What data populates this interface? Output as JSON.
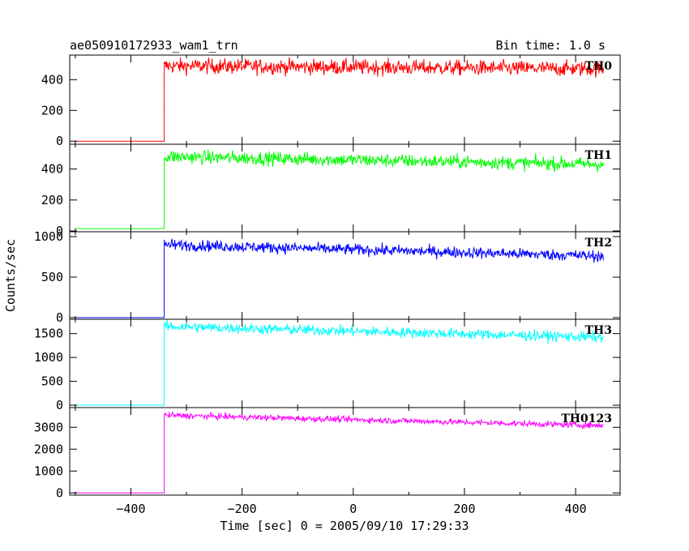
{
  "chart_data": {
    "type": "line",
    "title": "ae050910172933_wam1_trn",
    "subtitle": "Bin time: 1.0 s",
    "xlabel": "Time [sec] 0 = 2005/09/10 17:29:33",
    "ylabel": "Counts/sec",
    "xlim": [
      -510,
      480
    ],
    "x_ticks": [
      -400,
      -200,
      0,
      200,
      400
    ],
    "x_tick_labels": [
      "−400",
      "−200",
      "0",
      "200",
      "400"
    ],
    "trigger_time": -340,
    "x_range": [
      -500,
      450
    ],
    "series": [
      {
        "name": "TH0",
        "color": "#ff0000",
        "ylim": [
          -20,
          560
        ],
        "y_ticks": [
          0,
          200,
          400
        ],
        "y_tick_labels": [
          "0",
          "200",
          "400"
        ],
        "pre": 0,
        "start": 490,
        "end": 470,
        "noise": 25
      },
      {
        "name": "TH1",
        "color": "#00ff00",
        "ylim": [
          -5,
          560
        ],
        "y_ticks": [
          0,
          200,
          400
        ],
        "y_tick_labels": [
          "0",
          "200",
          "400"
        ],
        "pre": 15,
        "start": 480,
        "end": 430,
        "noise": 22
      },
      {
        "name": "TH2",
        "color": "#0000ff",
        "ylim": [
          -20,
          1060
        ],
        "y_ticks": [
          0,
          500,
          1000
        ],
        "y_tick_labels": [
          "0",
          "500",
          "1000"
        ],
        "pre": 0,
        "start": 900,
        "end": 760,
        "noise": 35
      },
      {
        "name": "TH3",
        "color": "#00ffff",
        "ylim": [
          -50,
          1800
        ],
        "y_ticks": [
          0,
          500,
          1000,
          1500
        ],
        "y_tick_labels": [
          "0",
          "500",
          "1000",
          "1500"
        ],
        "pre": 0,
        "start": 1650,
        "end": 1420,
        "noise": 55
      },
      {
        "name": "TH0123",
        "color": "#ff00ff",
        "ylim": [
          -100,
          3900
        ],
        "y_ticks": [
          0,
          1000,
          2000,
          3000
        ],
        "y_tick_labels": [
          "0",
          "1000",
          "2000",
          "3000"
        ],
        "pre": 0,
        "start": 3550,
        "end": 3080,
        "noise": 70
      }
    ]
  }
}
